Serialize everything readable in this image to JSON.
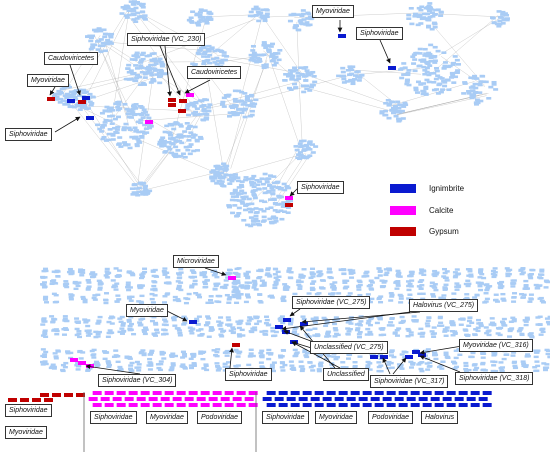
{
  "legend": {
    "items": [
      {
        "label": "Ignimbrite",
        "color": "#0a1ad0"
      },
      {
        "label": "Calcite",
        "color": "#ff00ff"
      },
      {
        "label": "Gypsum",
        "color": "#c00000"
      }
    ]
  },
  "colors": {
    "node": "#a9ccf5",
    "edge": "#9a9a9a",
    "arrow": "#111111"
  },
  "labels": {
    "myoviridae_top": "Myoviridae",
    "siphoviridae_topright": "Siphoviridae",
    "caudovirictes_left": "Caudoviricetes",
    "siphoviridae_vc230": "Siphoviridae (VC_230)",
    "caudovirictes_mid": "Caudoviricetes",
    "myoviridae_left": "Myoviridae",
    "siphoviridae_left": "Siphoviridae",
    "siphoviridae_mid": "Siphoviridae",
    "microviridae": "Microviridae",
    "myoviridae_mid": "Myoviridae",
    "siphoviridae_vc275": "Siphoviridae (VC_275)",
    "halovirus_vc275": "Halovirus (VC_275)",
    "unclassified_vc275": "Unclassified (VC_275)",
    "myoviridae_vc316": "Myoviridae (VC_316)",
    "unclassified": "Unclassified",
    "siphoviridae_lower": "Siphoviridae",
    "siphoviridae_vc304": "Siphoviridae (VC_304)",
    "siphoviridae_vc317": "Siphoviridae (VC_317)",
    "siphoviridae_vc318": "Siphoviridae (VC_318)"
  },
  "bottom_panels": {
    "gypsum": [
      "Siphoviridae",
      "Myoviridae"
    ],
    "calcite": [
      "Siphoviridae",
      "Myoviridae",
      "Podoviridae"
    ],
    "ignimbrite": [
      "Siphoviridae",
      "Myoviridae",
      "Podoviridae",
      "Halovirus"
    ]
  }
}
